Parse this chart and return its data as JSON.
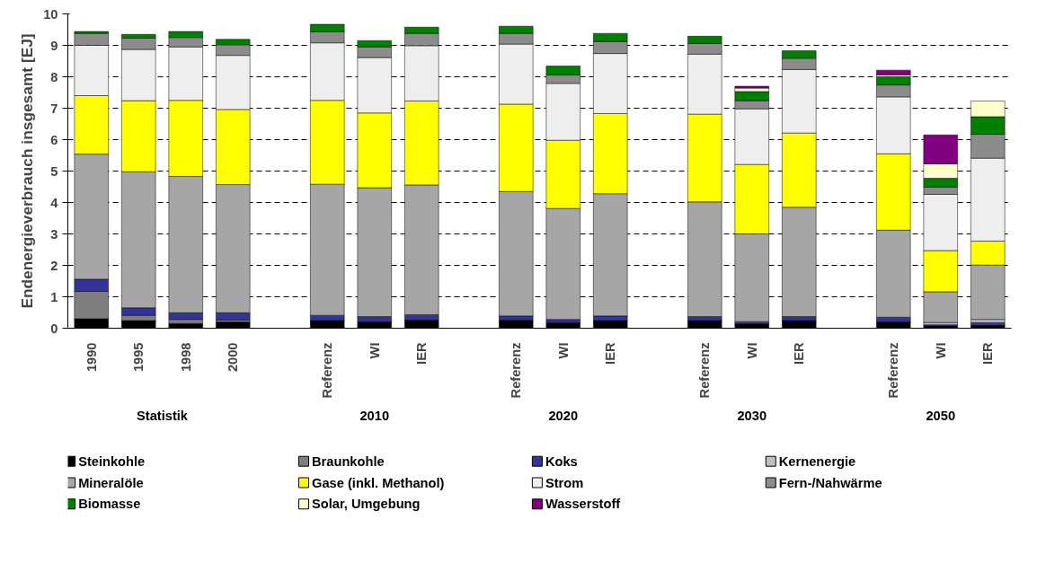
{
  "chart_data": {
    "type": "bar",
    "stacked": true,
    "ylabel": "Endenergieverbrauch insgesamt [EJ]",
    "categories": [
      "1990",
      "1995",
      "1998",
      "2000",
      null,
      "Referenz",
      "WI",
      "IER",
      null,
      "Referenz",
      "WI",
      "IER",
      null,
      "Referenz",
      "WI",
      "IER",
      null,
      "Referenz",
      "WI",
      "IER"
    ],
    "annotations": [
      "Statistik",
      "2010",
      "2020",
      "2030",
      "2050"
    ],
    "ylim": [
      0,
      10
    ],
    "yticks": [
      0,
      1,
      2,
      3,
      4,
      5,
      6,
      7,
      8,
      9,
      10
    ],
    "grid": "y",
    "legend": "bottom",
    "series": [
      {
        "name": "Steinkohle",
        "color": "#000000",
        "values": [
          0.3,
          0.24,
          0.15,
          0.2,
          null,
          0.24,
          0.21,
          0.26,
          null,
          0.26,
          0.18,
          0.24,
          null,
          0.24,
          0.14,
          0.24,
          null,
          0.21,
          0.07,
          0.09
        ]
      },
      {
        "name": "Braunkohle",
        "color": "#7f7f7f",
        "values": [
          0.87,
          0.17,
          0.13,
          0.06,
          null,
          null,
          0,
          0,
          null,
          0,
          0,
          0,
          null,
          0,
          0,
          0,
          null,
          0,
          0,
          0
        ]
      },
      {
        "name": "Koks",
        "color": "#333399",
        "values": [
          0.39,
          0.24,
          0.21,
          0.23,
          null,
          0.17,
          0.16,
          0.17,
          null,
          0.13,
          0.1,
          0.15,
          null,
          0.13,
          0.07,
          0.13,
          null,
          0.14,
          0.04,
          0.09
        ]
      },
      {
        "name": "Kernenergie",
        "color": "#c0c0c0",
        "values": [
          0,
          0,
          0,
          0,
          null,
          0,
          0,
          0,
          null,
          0,
          0,
          0,
          null,
          0,
          0,
          0,
          null,
          0,
          0.07,
          0.1
        ]
      },
      {
        "name": "Mineralöle",
        "color": "#a6a6a6",
        "values": [
          3.98,
          4.33,
          4.34,
          4.08,
          null,
          4.17,
          4.1,
          4.13,
          null,
          3.96,
          3.53,
          3.89,
          null,
          3.65,
          2.79,
          3.48,
          null,
          2.77,
          0.98,
          1.73
        ]
      },
      {
        "name": "Gase (inkl. Methanol)",
        "color": "#ffff00",
        "values": [
          1.86,
          2.26,
          2.42,
          2.39,
          null,
          2.67,
          2.38,
          2.67,
          null,
          2.78,
          2.17,
          2.55,
          null,
          2.79,
          2.21,
          2.36,
          null,
          2.43,
          1.31,
          0.76
        ]
      },
      {
        "name": "Strom",
        "color": "#eeeeee",
        "values": [
          1.6,
          1.63,
          1.7,
          1.72,
          null,
          1.83,
          1.76,
          1.76,
          null,
          1.91,
          1.81,
          1.91,
          null,
          1.91,
          1.77,
          2.02,
          null,
          1.81,
          1.79,
          2.64
        ]
      },
      {
        "name": "Fern-/Nahwärme",
        "color": "#8c8c8c",
        "values": [
          0.38,
          0.36,
          0.3,
          0.34,
          null,
          0.35,
          0.34,
          0.39,
          null,
          0.34,
          0.27,
          0.38,
          null,
          0.34,
          0.26,
          0.36,
          null,
          0.38,
          0.23,
          0.76
        ]
      },
      {
        "name": "Biomasse",
        "color": "#008000",
        "values": [
          0.06,
          0.12,
          0.19,
          0.17,
          null,
          0.24,
          0.2,
          0.2,
          null,
          0.23,
          0.28,
          0.26,
          null,
          0.23,
          0.29,
          0.24,
          null,
          0.26,
          0.28,
          0.56
        ]
      },
      {
        "name": "Solar, Umgebung",
        "color": "#ffffcc",
        "values": [
          0,
          0,
          0,
          0,
          null,
          0,
          0,
          0,
          null,
          0,
          0,
          0,
          null,
          0,
          0.11,
          0,
          null,
          0.06,
          0.46,
          0.5
        ]
      },
      {
        "name": "Wasserstoff",
        "color": "#800080",
        "values": [
          0,
          0,
          0,
          0,
          null,
          0,
          0,
          0,
          null,
          0,
          0,
          0,
          null,
          0,
          0.06,
          0,
          null,
          0.15,
          0.92,
          0
        ]
      }
    ]
  }
}
